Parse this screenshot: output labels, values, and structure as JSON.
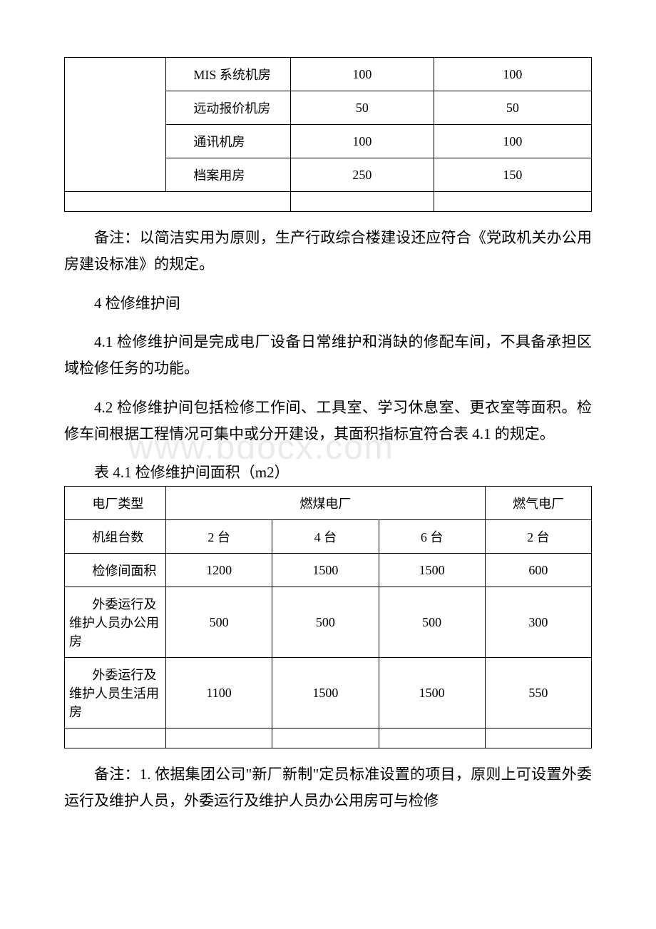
{
  "watermark": "www.bdocx.com",
  "table1": {
    "rows": [
      {
        "name": "MIS 系统机房",
        "v1": "100",
        "v2": "100"
      },
      {
        "name": "远动报价机房",
        "v1": "50",
        "v2": "50"
      },
      {
        "name": "通讯机房",
        "v1": "100",
        "v2": "100"
      },
      {
        "name": "档案用房",
        "v1": "250",
        "v2": "150"
      }
    ]
  },
  "paras": {
    "p1": "备注：以简洁实用为原则，生产行政综合楼建设还应符合《党政机关办公用房建设标准》的规定。",
    "p2": "4 检修维护间",
    "p3": "4.1 检修维护间是完成电厂设备日常维护和消缺的修配车间，不具备承担区域检修任务的功能。",
    "p4": "4.2 检修维护间包括检修工作间、工具室、学习休息室、更衣室等面积。检修车间根据工程情况可集中或分开建设，其面积指标宜符合表 4.1 的规定。",
    "p5": "表 4.1 检修维护间面积（m2）",
    "p6": "备注：1. 依据集团公司\"新厂新制\"定员标准设置的项目，原则上可设置外委运行及维护人员，外委运行及维护人员办公用房可与检修"
  },
  "table2": {
    "header": {
      "col0": "电厂类型",
      "coal": "燃煤电厂",
      "gas": "燃气电厂"
    },
    "rows": [
      {
        "label": "机组台数",
        "v1": "2 台",
        "v2": "4 台",
        "v3": "6 台",
        "v4": "2 台"
      },
      {
        "label": "检修间面积",
        "v1": "1200",
        "v2": "1500",
        "v3": "1500",
        "v4": "600"
      },
      {
        "label": "外委运行及维护人员办公用房",
        "v1": "500",
        "v2": "500",
        "v3": "500",
        "v4": "300"
      },
      {
        "label": "外委运行及维护人员生活用房",
        "v1": "1100",
        "v2": "1500",
        "v3": "1500",
        "v4": "550"
      }
    ]
  },
  "colors": {
    "text": "#000000",
    "border": "#000000",
    "background": "#ffffff",
    "watermark": "#eaeaea"
  }
}
